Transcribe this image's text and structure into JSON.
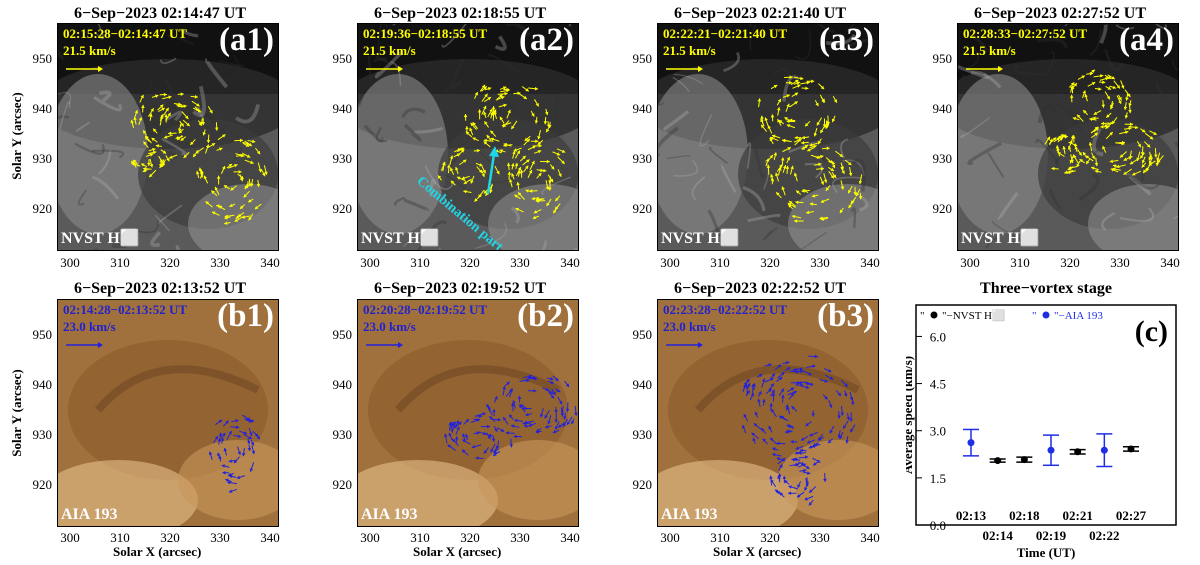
{
  "panels_top": [
    {
      "title": "6−Sep−2023 02:14:47 UT",
      "timestamp": "02:15:28−02:14:47 UT",
      "speed": "21.5 km/s",
      "label": "(a1)",
      "instrument": "NVST H⬜"
    },
    {
      "title": "6−Sep−2023 02:18:55 UT",
      "timestamp": "02:19:36−02:18:55 UT",
      "speed": "21.5 km/s",
      "label": "(a2)",
      "instrument": "NVST H⬜",
      "annotation": "Combination part"
    },
    {
      "title": "6−Sep−2023 02:21:40 UT",
      "timestamp": "02:22:21−02:21:40 UT",
      "speed": "21.5 km/s",
      "label": "(a3)",
      "instrument": "NVST H⬜"
    },
    {
      "title": "6−Sep−2023 02:27:52 UT",
      "timestamp": "02:28:33−02:27:52 UT",
      "speed": "21.5 km/s",
      "label": "(a4)",
      "instrument": "NVST H⬜"
    }
  ],
  "panels_bottom": [
    {
      "title": "6−Sep−2023 02:13:52 UT",
      "timestamp": "02:14:28−02:13:52 UT",
      "speed": "23.0 km/s",
      "label": "(b1)",
      "instrument": "AIA 193"
    },
    {
      "title": "6−Sep−2023 02:19:52 UT",
      "timestamp": "02:20:28−02:19:52 UT",
      "speed": "23.0 km/s",
      "label": "(b2)",
      "instrument": "AIA 193"
    },
    {
      "title": "6−Sep−2023 02:22:52 UT",
      "timestamp": "02:23:28−02:22:52 UT",
      "speed": "23.0 km/s",
      "label": "(b3)",
      "instrument": "AIA 193"
    }
  ],
  "image_axes": {
    "xlabel": "Solar X (arcsec)",
    "ylabel": "Solar Y (arcsec)",
    "xticks": [
      "300",
      "310",
      "320",
      "330",
      "340"
    ],
    "yticks": [
      "950",
      "940",
      "930",
      "920"
    ]
  },
  "colors": {
    "nvst_arrow": "#ffff00",
    "aia_arrow": "#2222dd",
    "annotation": "#1fd6e6",
    "timestamp_top": "#ffff00",
    "timestamp_bottom": "#2222cc"
  },
  "chart_data": {
    "type": "scatter",
    "title": "Three−vortex stage",
    "label": "(c)",
    "xlabel": "Time (UT)",
    "ylabel": "Average speed (km/s)",
    "ylim": [
      0,
      7
    ],
    "yticks": [
      "0.0",
      "1.5",
      "3.0",
      "4.5",
      "6.0"
    ],
    "x_tick_labels_upper": [
      "02:13",
      "02:18",
      "02:21",
      "02:27"
    ],
    "x_tick_labels_lower": [
      "02:14",
      "02:19",
      "02:22"
    ],
    "legend": [
      {
        "marker": "●",
        "text": "−NVST H⬜",
        "prefix": "\" \"",
        "color": "#000000"
      },
      {
        "marker": "●",
        "text": "−AIA 193",
        "prefix": "\" \"",
        "color": "#1f2ee6"
      }
    ],
    "series": [
      {
        "name": "NVST H⬜",
        "color": "#000000",
        "points": [
          {
            "x": "02:14",
            "y": 2.05,
            "err": 0.05
          },
          {
            "x": "02:18",
            "y": 2.08,
            "err": 0.08
          },
          {
            "x": "02:21",
            "y": 2.33,
            "err": 0.07
          },
          {
            "x": "02:27",
            "y": 2.42,
            "err": 0.07
          }
        ]
      },
      {
        "name": "AIA 193",
        "color": "#1f2ee6",
        "points": [
          {
            "x": "02:13",
            "y": 2.62,
            "err": 0.42
          },
          {
            "x": "02:19",
            "y": 2.38,
            "err": 0.48
          },
          {
            "x": "02:22",
            "y": 2.38,
            "err": 0.52
          }
        ]
      }
    ],
    "x_order": [
      "02:13",
      "02:14",
      "02:18",
      "02:19",
      "02:21",
      "02:22",
      "02:27"
    ]
  }
}
